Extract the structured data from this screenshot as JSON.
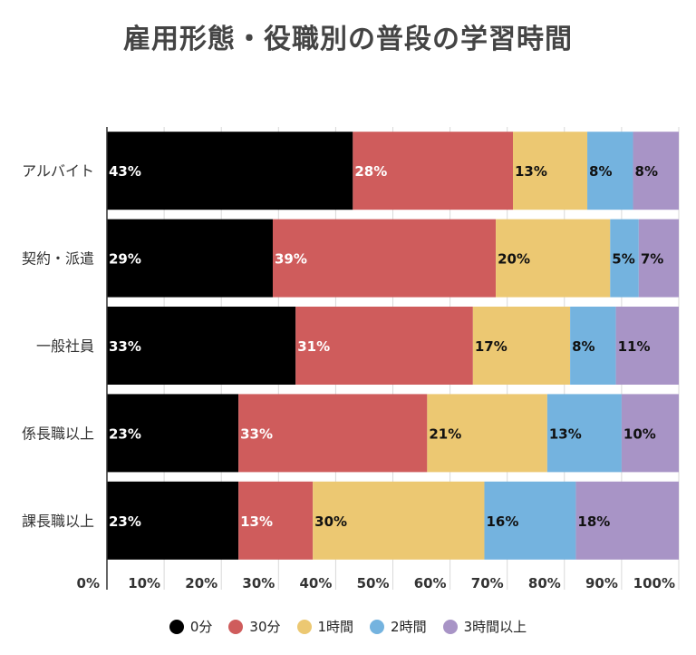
{
  "title": "雇用形態・役職別の普段の学習時間",
  "chart_data": {
    "type": "bar",
    "orientation": "horizontal",
    "stacked": true,
    "percent": true,
    "categories": [
      "アルバイト",
      "契約・派遣",
      "一般社員",
      "係長職以上",
      "課長職以上"
    ],
    "series": [
      {
        "name": "0分",
        "color": "#000000",
        "label_color": "#ffffff",
        "values": [
          43,
          29,
          33,
          23,
          23
        ]
      },
      {
        "name": "30分",
        "color": "#cf5c5c",
        "label_color": "#ffffff",
        "values": [
          28,
          39,
          31,
          33,
          13
        ]
      },
      {
        "name": "1時間",
        "color": "#ecc872",
        "label_color": "#111111",
        "values": [
          13,
          20,
          17,
          21,
          30
        ]
      },
      {
        "name": "2時間",
        "color": "#74b3df",
        "label_color": "#111111",
        "values": [
          8,
          5,
          8,
          13,
          16
        ]
      },
      {
        "name": "3時間以上",
        "color": "#a894c6",
        "label_color": "#111111",
        "values": [
          8,
          7,
          11,
          10,
          18
        ]
      }
    ],
    "xlim": [
      0,
      100
    ],
    "xticks": [
      "0%",
      "10%",
      "20%",
      "30%",
      "40%",
      "50%",
      "60%",
      "70%",
      "80%",
      "90%",
      "100%"
    ],
    "grid": true,
    "legend": "bottom"
  }
}
